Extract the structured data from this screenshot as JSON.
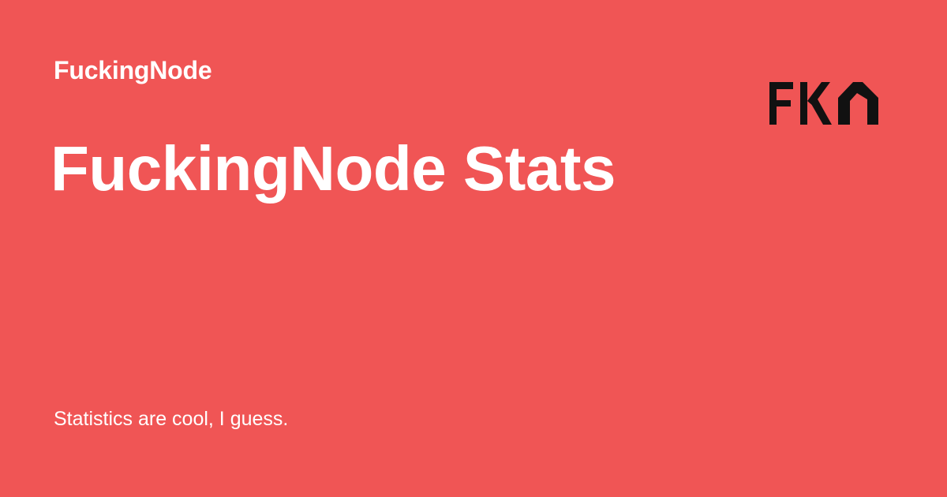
{
  "brand": {
    "site_name": "FuckingNode",
    "logo_text": "FKN",
    "logo_icon": "fkn-logo-icon"
  },
  "page": {
    "title": "FuckingNode Stats",
    "tagline": "Statistics are cool, I guess."
  },
  "colors": {
    "background": "#F05555",
    "text": "#FFFFFF",
    "logo": "#111111"
  }
}
